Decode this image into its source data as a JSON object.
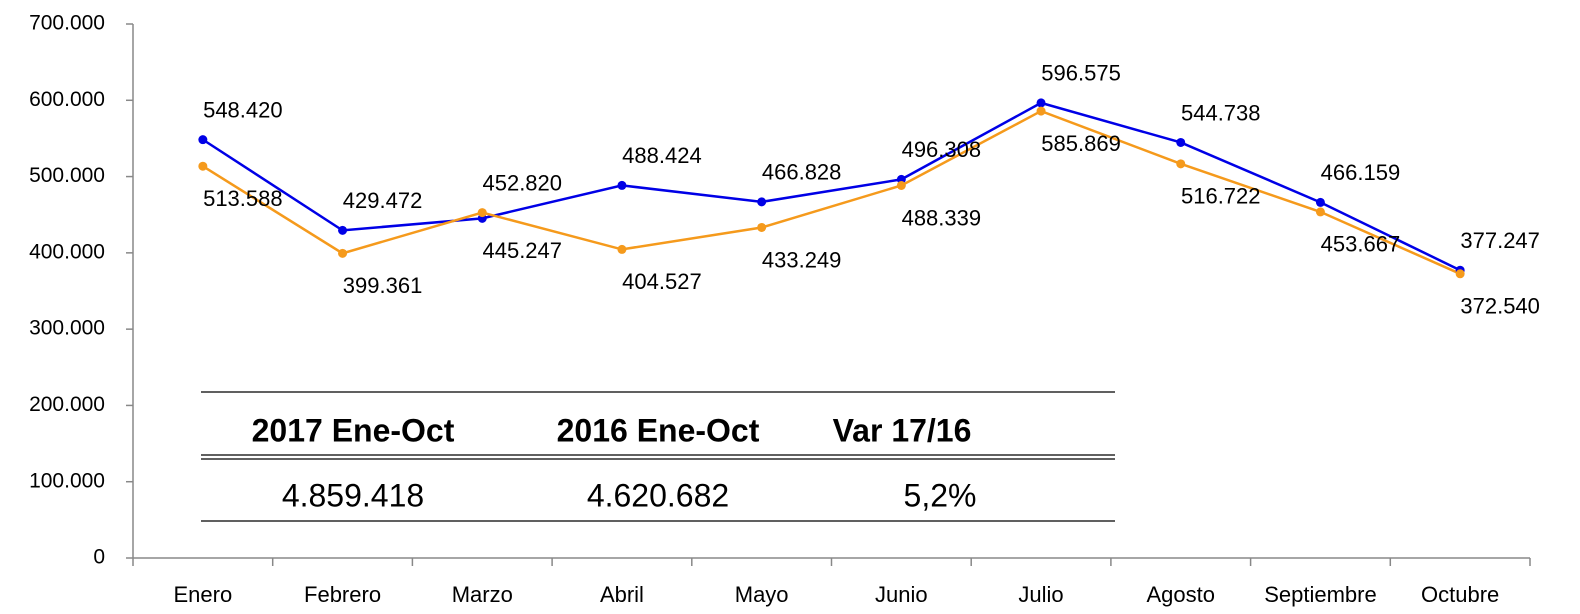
{
  "chart_data": {
    "type": "line",
    "categories": [
      "Enero",
      "Febrero",
      "Marzo",
      "Abril",
      "Mayo",
      "Junio",
      "Julio",
      "Agosto",
      "Septiembre",
      "Octubre"
    ],
    "series": [
      {
        "color": "#0000e6",
        "values": [
          548420,
          429472,
          445247,
          488424,
          466828,
          496308,
          596575,
          544738,
          466159,
          377247
        ],
        "value_labels": [
          "548.420",
          "429.472",
          "445.247",
          "488.424",
          "466.828",
          "496.308",
          "596.575",
          "544.738",
          "466.159",
          "377.247"
        ]
      },
      {
        "color": "#f59a1c",
        "values": [
          513588,
          399361,
          452820,
          404527,
          433249,
          488339,
          585869,
          516722,
          453667,
          372540
        ],
        "value_labels": [
          "513.588",
          "399.361",
          "452.820",
          "404.527",
          "433.249",
          "488.339",
          "585.869",
          "516.722",
          "453.667",
          "372.540"
        ]
      }
    ],
    "ylim": [
      0,
      700000
    ],
    "yticks": [
      0,
      {
        "value": 100000,
        "label": "100.000"
      },
      {
        "value": 200000,
        "label": "200.000"
      },
      {
        "value": 300000,
        "label": "300.000"
      },
      {
        "value": 400000,
        "label": "400.000"
      },
      {
        "value": 500000,
        "label": "500.000"
      },
      {
        "value": 600000,
        "label": "600.000"
      },
      {
        "value": 700000,
        "label": "700.000"
      }
    ],
    "grid": false
  },
  "table": {
    "header": [
      "2017 Ene-Oct",
      "2016 Ene-Oct",
      "Var 17/16"
    ],
    "row": [
      "4.859.418",
      "4.620.682",
      "5,2%"
    ]
  }
}
